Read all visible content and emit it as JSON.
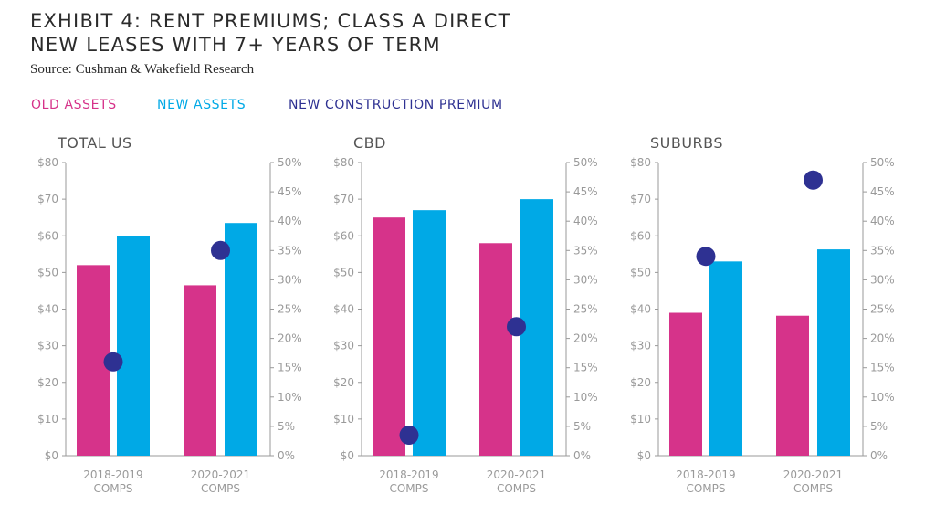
{
  "title_line1": "EXHIBIT 4: RENT PREMIUMS; CLASS A DIRECT",
  "title_line2": "NEW LEASES WITH 7+ YEARS OF TERM",
  "source": "Source: Cushman & Wakefield Research",
  "colors": {
    "old_assets": "#d6338a",
    "new_assets": "#00a9e6",
    "premium": "#2e3192",
    "axis": "#9a9a9a"
  },
  "legend": {
    "old_assets": "OLD ASSETS",
    "new_assets": "NEW ASSETS",
    "premium": "NEW CONSTRUCTION PREMIUM"
  },
  "chart_data": [
    {
      "type": "bar",
      "title": "TOTAL US",
      "categories": [
        [
          "2018-2019",
          "COMPS"
        ],
        [
          "2020-2021",
          "COMPS"
        ]
      ],
      "series": [
        {
          "name": "OLD ASSETS",
          "values": [
            52,
            46.5
          ]
        },
        {
          "name": "NEW ASSETS",
          "values": [
            60,
            63.5
          ]
        },
        {
          "name": "NEW CONSTRUCTION PREMIUM",
          "axis": "right",
          "values": [
            16,
            35
          ]
        }
      ],
      "ylim_left": [
        0,
        80
      ],
      "ylim_right": [
        0,
        50
      ],
      "left_ticks": [
        "$0",
        "$10",
        "$20",
        "$30",
        "$40",
        "$50",
        "$60",
        "$70",
        "$80"
      ],
      "right_ticks": [
        "0%",
        "5%",
        "10%",
        "15%",
        "20%",
        "25%",
        "30%",
        "35%",
        "40%",
        "45%",
        "50%"
      ]
    },
    {
      "type": "bar",
      "title": "CBD",
      "categories": [
        [
          "2018-2019",
          "COMPS"
        ],
        [
          "2020-2021",
          "COMPS"
        ]
      ],
      "series": [
        {
          "name": "OLD ASSETS",
          "values": [
            65,
            58
          ]
        },
        {
          "name": "NEW ASSETS",
          "values": [
            67,
            70
          ]
        },
        {
          "name": "NEW CONSTRUCTION PREMIUM",
          "axis": "right",
          "values": [
            3.5,
            22
          ]
        }
      ],
      "ylim_left": [
        0,
        80
      ],
      "ylim_right": [
        0,
        50
      ],
      "left_ticks": [
        "$0",
        "$10",
        "$20",
        "$30",
        "$40",
        "$50",
        "$60",
        "$70",
        "$80"
      ],
      "right_ticks": [
        "0%",
        "5%",
        "10%",
        "15%",
        "20%",
        "25%",
        "30%",
        "35%",
        "40%",
        "45%",
        "50%"
      ]
    },
    {
      "type": "bar",
      "title": "SUBURBS",
      "categories": [
        [
          "2018-2019",
          "COMPS"
        ],
        [
          "2020-2021",
          "COMPS"
        ]
      ],
      "series": [
        {
          "name": "OLD ASSETS",
          "values": [
            39,
            38.2
          ]
        },
        {
          "name": "NEW ASSETS",
          "values": [
            53,
            56.3
          ]
        },
        {
          "name": "NEW CONSTRUCTION PREMIUM",
          "axis": "right",
          "values": [
            34,
            47
          ]
        }
      ],
      "ylim_left": [
        0,
        80
      ],
      "ylim_right": [
        0,
        50
      ],
      "left_ticks": [
        "$0",
        "$10",
        "$20",
        "$30",
        "$40",
        "$50",
        "$60",
        "$70",
        "$80"
      ],
      "right_ticks": [
        "0%",
        "5%",
        "10%",
        "15%",
        "20%",
        "25%",
        "30%",
        "35%",
        "40%",
        "45%",
        "50%"
      ]
    }
  ]
}
